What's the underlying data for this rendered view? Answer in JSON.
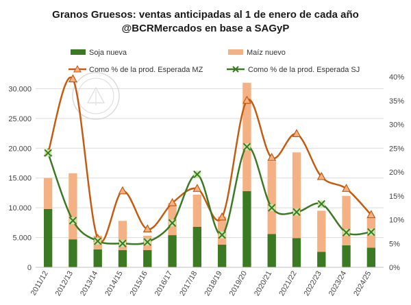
{
  "chart_data": {
    "type": "bar",
    "title": "Granos Gruesos: ventas anticipadas al 1 de enero de cada año",
    "subtitle": "@BCRMercados en base a SAGyP",
    "categories": [
      "2011/12",
      "2012/13",
      "2013/14",
      "2014/15",
      "2015/16",
      "2016/17",
      "2017/18",
      "2018/19",
      "2019/20",
      "2020/21",
      "2021/22",
      "2022/23",
      "2023/24",
      "2024/25"
    ],
    "bar_series": [
      {
        "name": "Soja nueva",
        "color": "#3b7a23",
        "values": [
          9800,
          4700,
          3000,
          2900,
          2900,
          5400,
          6800,
          3800,
          12800,
          5600,
          4900,
          2600,
          3700,
          3300
        ]
      },
      {
        "name": "Maíz nuevo",
        "color": "#f4b183",
        "values": [
          5200,
          11100,
          2300,
          4900,
          2400,
          5400,
          5400,
          4700,
          18200,
          12200,
          14400,
          6900,
          8300,
          5100
        ]
      }
    ],
    "line_series": [
      {
        "name": "Como % de la prod. Esperada MZ",
        "color": "#c55a11",
        "marker": "triangle",
        "axis": "right",
        "values": [
          24.0,
          39.5,
          6.0,
          16.0,
          8.0,
          13.5,
          16.5,
          10.5,
          35.0,
          23.0,
          28.0,
          19.0,
          16.5,
          11.0
        ]
      },
      {
        "name": "Como % de la prod. Esperada SJ",
        "color": "#3b7a23",
        "marker": "x",
        "axis": "right",
        "values": [
          24.0,
          9.8,
          5.5,
          5.0,
          5.3,
          9.3,
          19.5,
          6.8,
          25.3,
          12.5,
          11.6,
          13.3,
          7.3,
          7.4
        ]
      }
    ],
    "y_left": {
      "min": 0,
      "max": 32000,
      "ticks": [
        0,
        5000,
        10000,
        15000,
        20000,
        25000,
        30000
      ],
      "tick_labels": [
        "0",
        "5.000",
        "10.000",
        "15.000",
        "20.000",
        "25.000",
        "30.000"
      ]
    },
    "y_right": {
      "min": 0,
      "max": 40,
      "ticks": [
        0,
        5,
        10,
        15,
        20,
        25,
        30,
        35,
        40
      ],
      "tick_labels": [
        "0%",
        "5%",
        "10%",
        "15%",
        "20%",
        "25%",
        "30%",
        "35%",
        "40%"
      ]
    },
    "grid": true,
    "legend_position": "top"
  }
}
